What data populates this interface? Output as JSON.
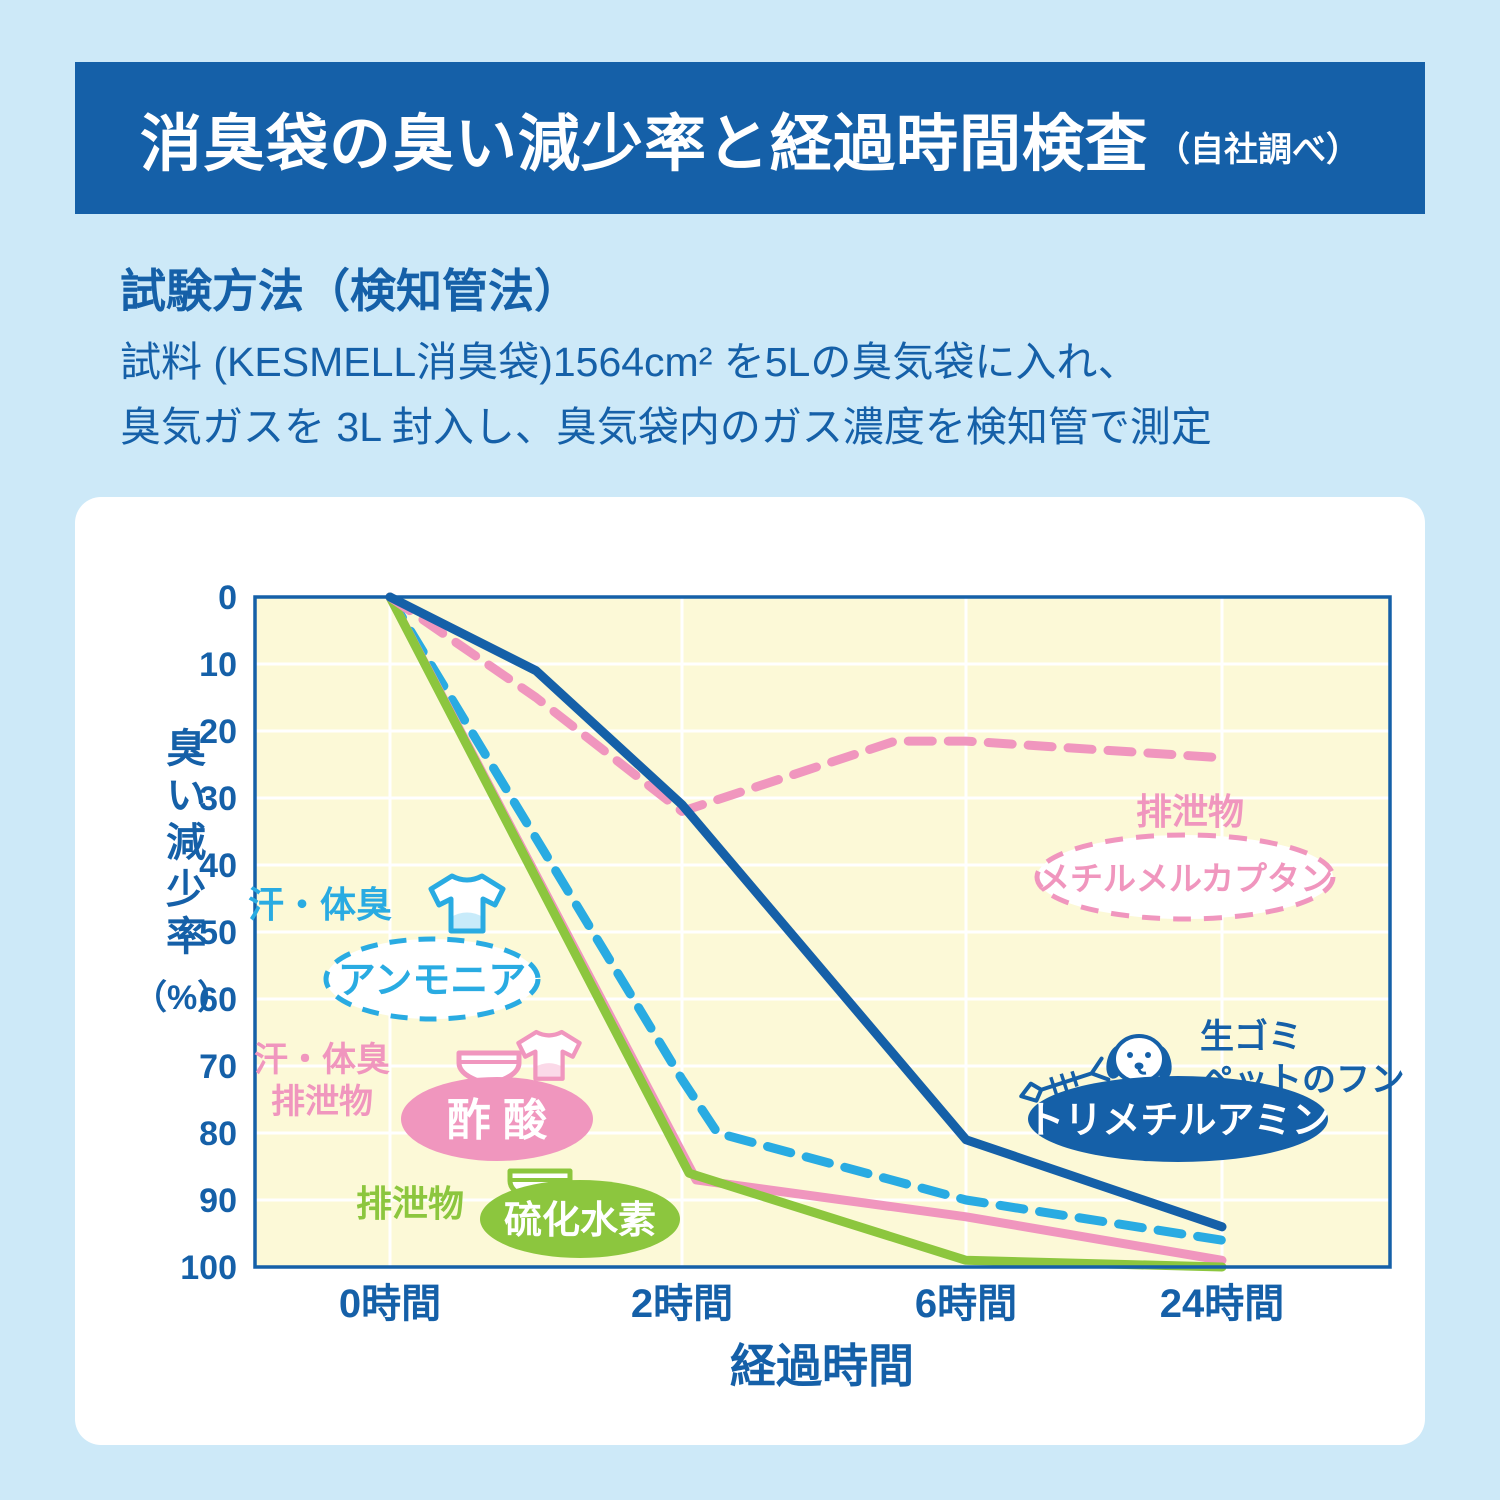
{
  "header": {
    "title": "消臭袋の臭い減少率と経過時間検査",
    "subtitle": "（自社調べ）",
    "bg_color": "#1560a8"
  },
  "method": {
    "heading": "試験方法（検知管法）",
    "line1": "試料 (KESMELL消臭袋)1564cm² を5Lの臭気袋に入れ、",
    "line2": "臭気ガスを 3L 封入し、臭気袋内のガス濃度を検知管で測定"
  },
  "chart_data": {
    "type": "line",
    "title": "消臭袋の臭い減少率と経過時間検査",
    "xlabel": "経過時間",
    "ylabel": "臭い減少率（%）",
    "ylabel_main": "臭い減少率",
    "ylabel_unit": "（%）",
    "y_axis": {
      "min": 0,
      "max": 100,
      "step": 10,
      "inverted": true,
      "unit": "%"
    },
    "y_ticks": [
      0,
      10,
      20,
      30,
      40,
      50,
      60,
      70,
      80,
      90,
      100
    ],
    "x_ticks": [
      {
        "label": "0時間",
        "hours": 0
      },
      {
        "label": "2時間",
        "hours": 2
      },
      {
        "label": "6時間",
        "hours": 6
      },
      {
        "label": "24時間",
        "hours": 24
      }
    ],
    "plot_bg": "#fcf9d7",
    "grid_color": "#ffffff",
    "series": [
      {
        "id": "ammonia",
        "name": "アンモニア",
        "source": "汗・体臭",
        "color": "#29abe2",
        "dashed": true,
        "points": [
          [
            0,
            0
          ],
          [
            2,
            72
          ],
          [
            2.5,
            80
          ],
          [
            6,
            90
          ],
          [
            24,
            96
          ]
        ]
      },
      {
        "id": "acetic-acid",
        "name": "酢酸",
        "source": "汗・体臭 排泄物",
        "color": "#f096be",
        "dashed": false,
        "points": [
          [
            0,
            0
          ],
          [
            2.2,
            87
          ],
          [
            6,
            92.5
          ],
          [
            24,
            99
          ]
        ]
      },
      {
        "id": "hydrogen-sulfide",
        "name": "硫化水素",
        "source": "排泄物",
        "color": "#8cc63e",
        "dashed": false,
        "points": [
          [
            0,
            0
          ],
          [
            2.1,
            86
          ],
          [
            6,
            99
          ],
          [
            24,
            100
          ]
        ]
      },
      {
        "id": "methyl-mercaptan",
        "name": "メチルメルカプタン",
        "source": "排泄物",
        "color": "#f096be",
        "dashed": true,
        "points": [
          [
            0,
            0
          ],
          [
            1,
            15
          ],
          [
            2,
            32
          ],
          [
            5,
            21.5
          ],
          [
            6,
            21.5
          ],
          [
            24,
            24
          ]
        ]
      },
      {
        "id": "trimethylamine",
        "name": "トリメチルアミン",
        "source": "生ゴミ ペットのフン",
        "color": "#1560a8",
        "dashed": false,
        "points": [
          [
            0,
            0
          ],
          [
            1,
            11
          ],
          [
            2,
            31
          ],
          [
            6,
            81
          ],
          [
            24,
            94
          ]
        ]
      }
    ]
  },
  "annotations": {
    "ammonia": {
      "source": "汗・体臭",
      "label": "アンモニア"
    },
    "acetic": {
      "source_line1": "汗・体臭",
      "source_line2": "排泄物",
      "label": "酢 酸"
    },
    "sulfide": {
      "source": "排泄物",
      "label": "硫化水素"
    },
    "mercaptan": {
      "source": "排泄物",
      "label": "メチルメルカプタン"
    },
    "trimethylamine": {
      "source_line1": "生ゴミ",
      "source_line2": "ペットのフン",
      "label": "トリメチルアミン"
    }
  }
}
